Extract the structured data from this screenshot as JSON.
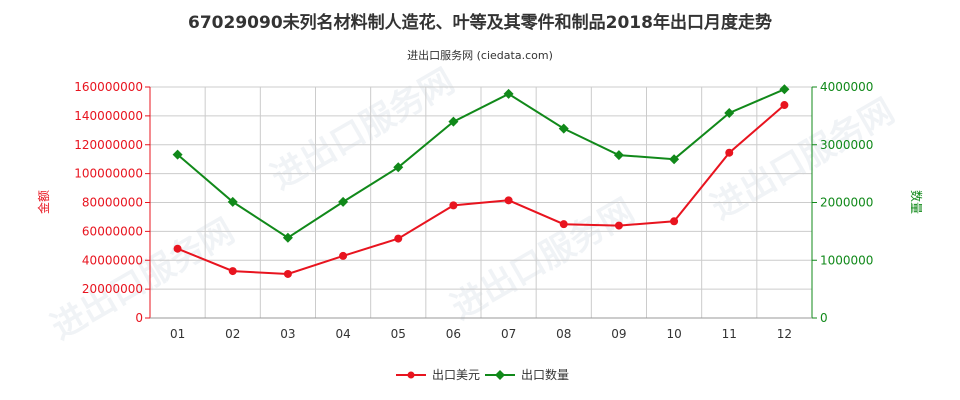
{
  "title": "67029090未列名材料制人造花、叶等及其零件和制品2018年出口月度走势",
  "subtitle": "进出口服务网 (ciedata.com)",
  "colors": {
    "usd": "#e8141f",
    "qty": "#11891a",
    "grid": "#cccccc",
    "axis": "#999999"
  },
  "chart_data": {
    "type": "line",
    "categories": [
      "01",
      "02",
      "03",
      "04",
      "05",
      "06",
      "07",
      "08",
      "09",
      "10",
      "11",
      "12"
    ],
    "y_left": {
      "label": "金额",
      "min": 0,
      "max": 160000000,
      "ticks": [
        "0",
        "20000000",
        "40000000",
        "60000000",
        "80000000",
        "100000000",
        "120000000",
        "140000000",
        "160000000"
      ]
    },
    "y_right": {
      "label": "数量",
      "min": 0,
      "max": 4000000,
      "ticks": [
        "0",
        "1000000",
        "2000000",
        "3000000",
        "4000000"
      ]
    },
    "series": [
      {
        "name": "出口美元",
        "axis": "left",
        "values": [
          48000000,
          32500000,
          30500000,
          43000000,
          55000000,
          78000000,
          81500000,
          65000000,
          64000000,
          67000000,
          114500000,
          147500000
        ]
      },
      {
        "name": "出口数量",
        "axis": "right",
        "values": [
          2830000,
          2010000,
          1390000,
          2010000,
          2610000,
          3400000,
          3880000,
          3280000,
          2820000,
          2750000,
          3550000,
          3960000
        ]
      }
    ],
    "grid": true,
    "legend_position": "bottom-center"
  }
}
